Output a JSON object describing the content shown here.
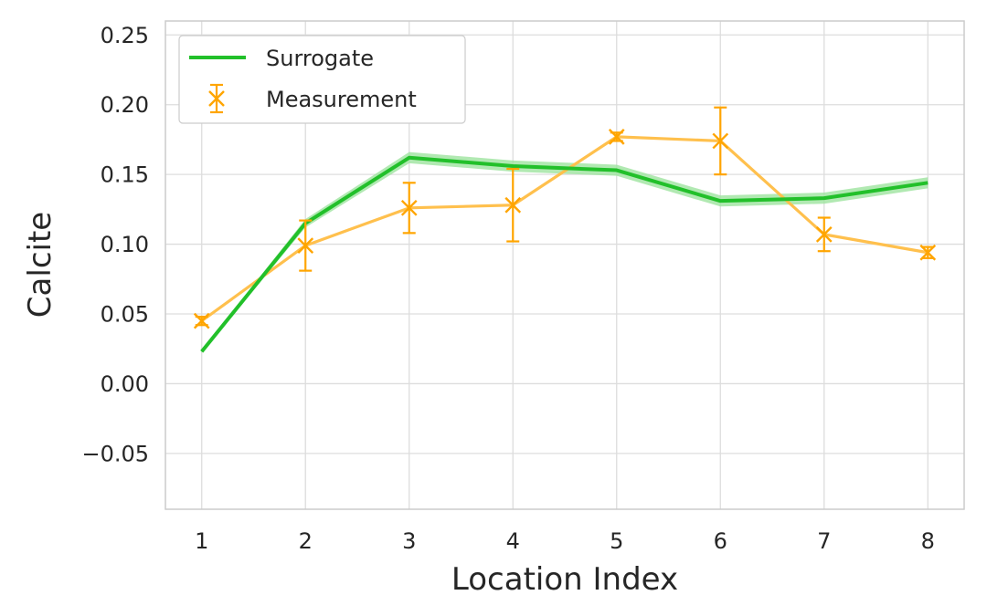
{
  "chart_data": {
    "type": "line",
    "xlabel": "Location Index",
    "ylabel": "Calcite",
    "xlim": [
      0.65,
      8.35
    ],
    "ylim": [
      -0.09,
      0.26
    ],
    "xticks": [
      1,
      2,
      3,
      4,
      5,
      6,
      7,
      8
    ],
    "xtick_labels": [
      "1",
      "2",
      "3",
      "4",
      "5",
      "6",
      "7",
      "8"
    ],
    "yticks": [
      -0.05,
      0.0,
      0.05,
      0.1,
      0.15,
      0.2,
      0.25
    ],
    "ytick_labels": [
      "−0.05",
      "0.00",
      "0.05",
      "0.10",
      "0.15",
      "0.20",
      "0.25"
    ],
    "grid": true,
    "legend_position": "top-left",
    "series": [
      {
        "name": "Surrogate",
        "kind": "line-with-band",
        "color": "#22c02a",
        "band_color": "#9de39f",
        "x": [
          1,
          2,
          3,
          4,
          5,
          6,
          7,
          8
        ],
        "y": [
          0.023,
          0.115,
          0.162,
          0.156,
          0.153,
          0.131,
          0.133,
          0.144
        ],
        "band_halfwidth": [
          0.001,
          0.003,
          0.004,
          0.004,
          0.004,
          0.004,
          0.004,
          0.004
        ]
      },
      {
        "name": "Measurement",
        "kind": "errorbar",
        "color": "#ffa500",
        "line_color": "#ffc04d",
        "marker": "x",
        "x": [
          1,
          2,
          3,
          4,
          5,
          6,
          7,
          8
        ],
        "y": [
          0.045,
          0.099,
          0.126,
          0.128,
          0.177,
          0.174,
          0.107,
          0.094
        ],
        "yerr": [
          0.003,
          0.018,
          0.018,
          0.026,
          0.003,
          0.024,
          0.012,
          0.004
        ]
      }
    ]
  }
}
